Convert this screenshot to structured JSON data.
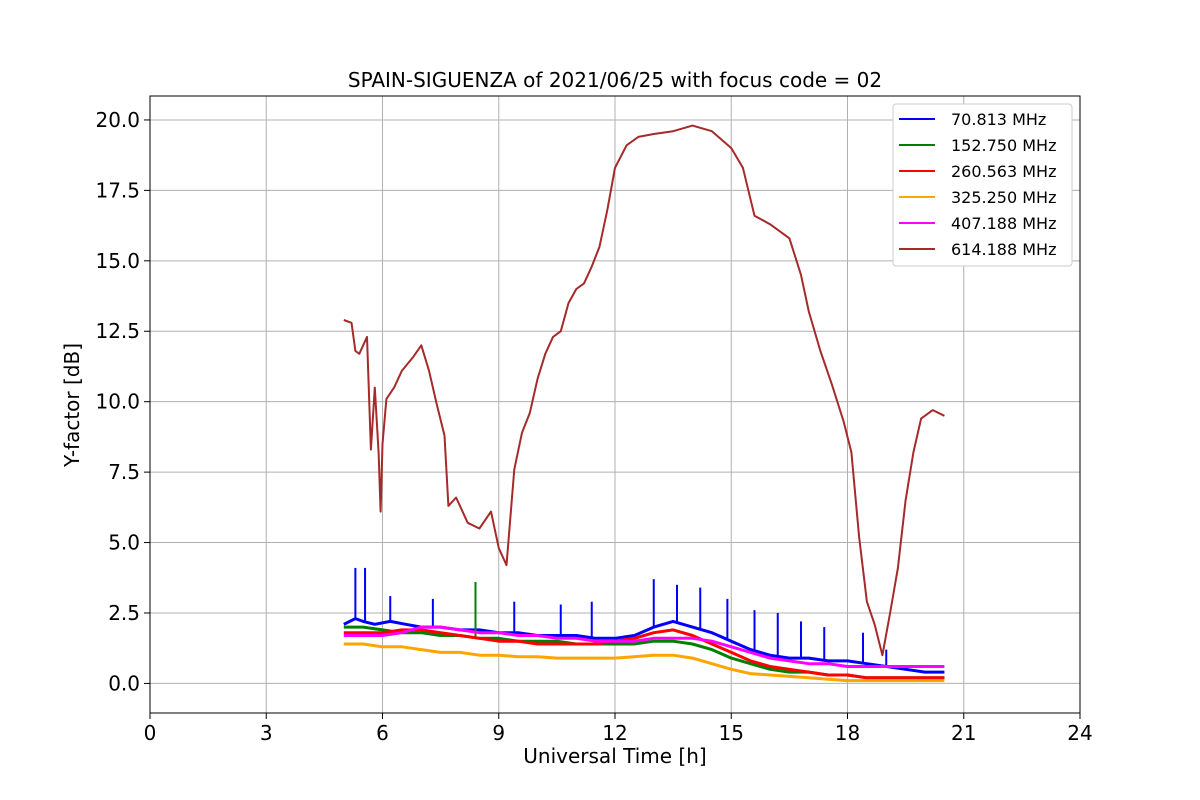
{
  "chart_data": {
    "type": "line",
    "title": "SPAIN-SIGUENZA of 2021/06/25 with focus code = 02",
    "xlabel": "Universal Time [h]",
    "ylabel": "Y-factor [dB]",
    "xlim": [
      0,
      24
    ],
    "ylim": [
      -1.05,
      20.85
    ],
    "xticks": [
      "0",
      "3",
      "6",
      "9",
      "12",
      "15",
      "18",
      "21",
      "24"
    ],
    "yticks": [
      "0.0",
      "2.5",
      "5.0",
      "7.5",
      "10.0",
      "12.5",
      "15.0",
      "17.5",
      "20.0"
    ],
    "grid": true,
    "legend_position": "top-right",
    "series": [
      {
        "name": "70.813 MHz",
        "color": "#0000ff",
        "x": [
          5.0,
          5.3,
          5.5,
          5.8,
          6.2,
          6.6,
          7.0,
          7.5,
          8.0,
          8.5,
          9.0,
          9.5,
          10.0,
          10.5,
          11.0,
          11.5,
          12.0,
          12.5,
          13.0,
          13.5,
          14.0,
          14.5,
          15.0,
          15.5,
          16.0,
          16.5,
          17.0,
          17.5,
          18.0,
          18.5,
          19.0,
          19.5,
          20.0,
          20.5
        ],
        "y": [
          2.1,
          2.3,
          2.2,
          2.1,
          2.2,
          2.1,
          2.0,
          2.0,
          1.9,
          1.9,
          1.8,
          1.8,
          1.7,
          1.7,
          1.7,
          1.6,
          1.6,
          1.7,
          2.0,
          2.2,
          2.0,
          1.8,
          1.5,
          1.2,
          1.0,
          0.9,
          0.9,
          0.8,
          0.8,
          0.7,
          0.6,
          0.5,
          0.4,
          0.4
        ],
        "spikes": [
          {
            "x": 5.3,
            "y": 4.1
          },
          {
            "x": 5.55,
            "y": 4.1
          },
          {
            "x": 6.2,
            "y": 3.1
          },
          {
            "x": 7.3,
            "y": 3.0
          },
          {
            "x": 8.4,
            "y": 3.2
          },
          {
            "x": 9.4,
            "y": 2.9
          },
          {
            "x": 10.6,
            "y": 2.8
          },
          {
            "x": 11.4,
            "y": 2.9
          },
          {
            "x": 13.0,
            "y": 3.7
          },
          {
            "x": 13.6,
            "y": 3.5
          },
          {
            "x": 14.2,
            "y": 3.4
          },
          {
            "x": 14.9,
            "y": 3.0
          },
          {
            "x": 15.6,
            "y": 2.6
          },
          {
            "x": 16.2,
            "y": 2.5
          },
          {
            "x": 16.8,
            "y": 2.2
          },
          {
            "x": 17.4,
            "y": 2.0
          },
          {
            "x": 18.4,
            "y": 1.8
          },
          {
            "x": 19.0,
            "y": 1.2
          }
        ]
      },
      {
        "name": "152.750 MHz",
        "color": "#008000",
        "x": [
          5.0,
          5.5,
          6.0,
          6.5,
          7.0,
          7.5,
          8.0,
          8.5,
          9.0,
          9.5,
          10.0,
          10.5,
          11.0,
          11.5,
          12.0,
          12.5,
          13.0,
          13.5,
          14.0,
          14.5,
          15.0,
          15.5,
          16.0,
          16.5,
          17.0,
          17.5,
          18.0,
          18.5,
          19.0,
          19.5,
          20.0,
          20.5
        ],
        "y": [
          2.0,
          2.0,
          1.9,
          1.8,
          1.8,
          1.7,
          1.7,
          1.6,
          1.6,
          1.5,
          1.5,
          1.5,
          1.4,
          1.4,
          1.4,
          1.4,
          1.5,
          1.5,
          1.4,
          1.2,
          0.9,
          0.7,
          0.5,
          0.4,
          0.4,
          0.3,
          0.3,
          0.2,
          0.2,
          0.2,
          0.2,
          0.2
        ],
        "spikes": [
          {
            "x": 8.4,
            "y": 3.6
          }
        ]
      },
      {
        "name": "260.563 MHz",
        "color": "#ff0000",
        "x": [
          5.0,
          5.5,
          6.0,
          6.5,
          7.0,
          7.5,
          8.0,
          8.5,
          9.0,
          9.5,
          10.0,
          10.5,
          11.0,
          11.5,
          12.0,
          12.5,
          13.0,
          13.5,
          14.0,
          14.5,
          15.0,
          15.5,
          16.0,
          16.5,
          17.0,
          17.5,
          18.0,
          18.5,
          19.0,
          19.5,
          20.0,
          20.5
        ],
        "y": [
          1.8,
          1.8,
          1.8,
          1.9,
          1.9,
          1.8,
          1.7,
          1.6,
          1.5,
          1.5,
          1.4,
          1.4,
          1.4,
          1.4,
          1.5,
          1.6,
          1.8,
          1.9,
          1.7,
          1.4,
          1.1,
          0.8,
          0.6,
          0.5,
          0.4,
          0.3,
          0.3,
          0.2,
          0.2,
          0.2,
          0.2,
          0.2
        ],
        "spikes": []
      },
      {
        "name": "325.250 MHz",
        "color": "#ffa500",
        "x": [
          5.0,
          5.5,
          6.0,
          6.5,
          7.0,
          7.5,
          8.0,
          8.5,
          9.0,
          9.5,
          10.0,
          10.5,
          11.0,
          11.5,
          12.0,
          12.5,
          13.0,
          13.5,
          14.0,
          14.5,
          15.0,
          15.5,
          16.0,
          16.5,
          17.0,
          17.5,
          18.0,
          18.5,
          19.0,
          19.5,
          20.0,
          20.5
        ],
        "y": [
          1.4,
          1.4,
          1.3,
          1.3,
          1.2,
          1.1,
          1.1,
          1.0,
          1.0,
          0.95,
          0.95,
          0.9,
          0.9,
          0.9,
          0.9,
          0.95,
          1.0,
          1.0,
          0.9,
          0.7,
          0.5,
          0.35,
          0.3,
          0.25,
          0.2,
          0.15,
          0.1,
          0.1,
          0.1,
          0.1,
          0.1,
          0.1
        ],
        "spikes": []
      },
      {
        "name": "407.188 MHz",
        "color": "#ff00ff",
        "x": [
          5.0,
          5.5,
          6.0,
          6.5,
          7.0,
          7.5,
          8.0,
          8.5,
          9.0,
          9.5,
          10.0,
          10.5,
          11.0,
          11.5,
          12.0,
          12.5,
          13.0,
          13.5,
          14.0,
          14.5,
          15.0,
          15.5,
          16.0,
          16.5,
          17.0,
          17.5,
          18.0,
          18.5,
          19.0,
          19.5,
          20.0,
          20.5
        ],
        "y": [
          1.7,
          1.7,
          1.7,
          1.8,
          2.0,
          2.0,
          1.9,
          1.8,
          1.8,
          1.7,
          1.7,
          1.6,
          1.6,
          1.5,
          1.5,
          1.5,
          1.6,
          1.6,
          1.6,
          1.5,
          1.3,
          1.1,
          0.9,
          0.8,
          0.7,
          0.7,
          0.6,
          0.6,
          0.6,
          0.6,
          0.6,
          0.6
        ],
        "spikes": []
      },
      {
        "name": "614.188 MHz",
        "color": "#a52a2a",
        "x": [
          5.0,
          5.2,
          5.3,
          5.4,
          5.6,
          5.7,
          5.8,
          5.9,
          5.95,
          6.0,
          6.1,
          6.3,
          6.5,
          6.8,
          7.0,
          7.2,
          7.4,
          7.6,
          7.7,
          7.9,
          8.2,
          8.5,
          8.8,
          9.0,
          9.2,
          9.4,
          9.6,
          9.8,
          10.0,
          10.2,
          10.4,
          10.6,
          10.8,
          11.0,
          11.2,
          11.4,
          11.6,
          11.8,
          12.0,
          12.3,
          12.6,
          13.0,
          13.5,
          14.0,
          14.5,
          15.0,
          15.3,
          15.6,
          16.0,
          16.5,
          16.8,
          17.0,
          17.3,
          17.6,
          17.9,
          18.1,
          18.3,
          18.5,
          18.7,
          18.9,
          19.1,
          19.3,
          19.5,
          19.7,
          19.9,
          20.2,
          20.5
        ],
        "y": [
          12.9,
          12.8,
          11.8,
          11.7,
          12.3,
          8.3,
          10.5,
          8.2,
          6.1,
          8.5,
          10.1,
          10.5,
          11.1,
          11.6,
          12.0,
          11.1,
          9.9,
          8.8,
          6.3,
          6.6,
          5.7,
          5.5,
          6.1,
          4.8,
          4.2,
          7.6,
          8.9,
          9.6,
          10.8,
          11.7,
          12.3,
          12.5,
          13.5,
          14.0,
          14.2,
          14.8,
          15.5,
          16.8,
          18.3,
          19.1,
          19.4,
          19.5,
          19.6,
          19.8,
          19.6,
          19.0,
          18.3,
          16.6,
          16.3,
          15.8,
          14.5,
          13.2,
          11.8,
          10.6,
          9.3,
          8.2,
          5.2,
          2.9,
          2.1,
          1.0,
          2.5,
          4.1,
          6.5,
          8.2,
          9.4,
          9.7,
          9.5
        ],
        "spikes": []
      }
    ]
  }
}
